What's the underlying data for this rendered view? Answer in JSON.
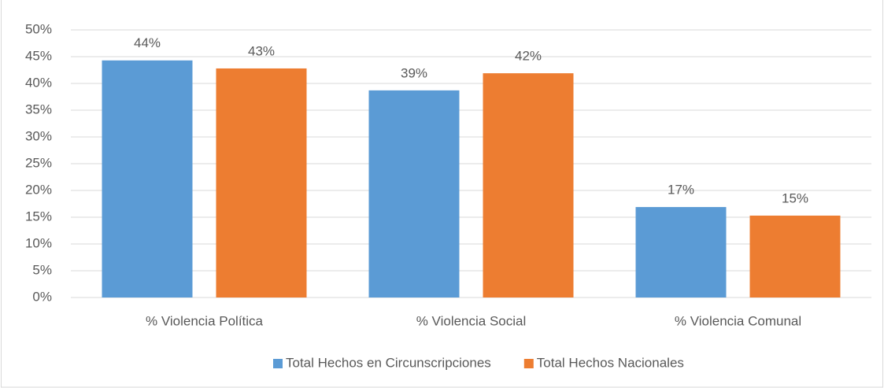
{
  "chart_data": {
    "type": "bar",
    "categories": [
      "% Violencia Política",
      "% Violencia Social",
      "% Violencia Comunal"
    ],
    "series": [
      {
        "name": "Total Hechos en Circunscripciones",
        "color": "#5b9bd5",
        "values": [
          44.3,
          38.7,
          16.9
        ],
        "value_labels": [
          "44%",
          "39%",
          "17%"
        ]
      },
      {
        "name": "Total Hechos Nacionales",
        "color": "#ed7d31",
        "values": [
          42.8,
          41.9,
          15.3
        ],
        "value_labels": [
          "43%",
          "42%",
          "15%"
        ]
      }
    ],
    "ylim": [
      0,
      50
    ],
    "yticks": [
      {
        "value": 0,
        "label": "0%"
      },
      {
        "value": 5,
        "label": "5%"
      },
      {
        "value": 10,
        "label": "10%"
      },
      {
        "value": 15,
        "label": "15%"
      },
      {
        "value": 20,
        "label": "20%"
      },
      {
        "value": 25,
        "label": "25%"
      },
      {
        "value": 30,
        "label": "30%"
      },
      {
        "value": 35,
        "label": "35%"
      },
      {
        "value": 40,
        "label": "40%"
      },
      {
        "value": 45,
        "label": "45%"
      },
      {
        "value": 50,
        "label": "50%"
      }
    ],
    "grid": true,
    "legend": "bottom"
  }
}
